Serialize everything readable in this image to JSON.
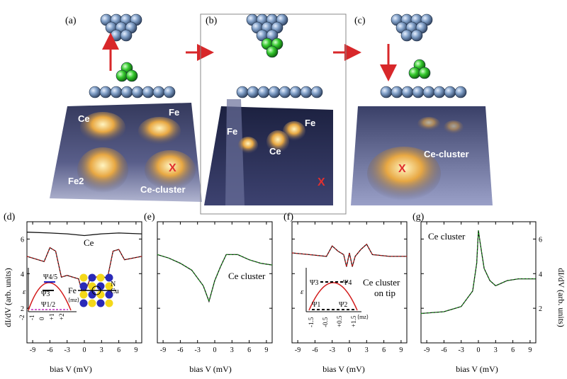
{
  "panels_top": {
    "a": {
      "label": "(a)",
      "atoms": [
        "Ce",
        "Fe",
        "Fe2",
        "Ce-cluster"
      ],
      "marker": "X"
    },
    "b": {
      "label": "(b)",
      "atoms": [
        "Fe",
        "Fe",
        "Ce"
      ],
      "marker": "X"
    },
    "c": {
      "label": "(c)",
      "atoms": [
        "Ce-cluster"
      ],
      "marker": "X"
    }
  },
  "panels_bottom": {
    "d": {
      "label": "(d)",
      "curve_label": "Ce",
      "inset": {
        "psi_top": "Ψ4/5",
        "psi_mid": "Ψ3",
        "psi_bot": "Ψ1/2",
        "xaxis": "⟨mz⟩",
        "yaxis": "ε",
        "ticks": [
          "-2",
          "-1",
          "0",
          "+1",
          "+2"
        ]
      },
      "lattice": {
        "center": "Fe",
        "n": "N",
        "cu": "Cu"
      }
    },
    "e": {
      "label": "(e)",
      "curve_label": "Ce cluster"
    },
    "f": {
      "label": "(f)",
      "curve_label_1": "Ce cluster",
      "curve_label_2": "on tip",
      "inset": {
        "psi_3": "Ψ3",
        "psi_4": "Ψ4",
        "psi_1": "Ψ1",
        "psi_2": "Ψ2",
        "yaxis": "ε",
        "xaxis": "⟨mz⟩",
        "ticks": [
          "-1.5",
          "-0.5",
          "+0.5",
          "+1.5"
        ]
      }
    },
    "g": {
      "label": "(g)",
      "curve_label": "Ce cluster"
    }
  },
  "axes": {
    "ylabel": "dI/dV (arb. units)",
    "xlabel": "bias V (mV)",
    "xticks": [
      "-9",
      "-6",
      "-3",
      "0",
      "3",
      "6",
      "9"
    ],
    "yticks": [
      "2",
      "4",
      "6"
    ]
  },
  "colors": {
    "fit": "#d21a1a",
    "green_fit": "#1a9a1a",
    "arrow": "#d8272a"
  },
  "chart_data": [
    {
      "type": "line",
      "panel": "d",
      "xlabel": "bias V (mV)",
      "ylabel": "dI/dV (arb. units)",
      "xlim": [
        -10,
        10
      ],
      "ylim": [
        0,
        7
      ],
      "series": [
        {
          "name": "Ce",
          "x": [
            -10,
            -6,
            -3,
            0,
            3,
            6,
            10
          ],
          "values": [
            6.4,
            6.35,
            6.3,
            6.2,
            6.3,
            6.35,
            6.3
          ]
        },
        {
          "name": "Fe",
          "x": [
            -10,
            -7,
            -6,
            -5,
            -4,
            -3,
            -2,
            -1,
            -0.3,
            0.3,
            1,
            2,
            3,
            4,
            5,
            6,
            7,
            10
          ],
          "values": [
            5.0,
            4.7,
            5.5,
            5.3,
            3.8,
            3.9,
            3.8,
            3.7,
            2.8,
            3.1,
            3.7,
            3.8,
            3.9,
            3.7,
            5.3,
            5.4,
            4.8,
            5.0
          ]
        }
      ]
    },
    {
      "type": "line",
      "panel": "e",
      "xlabel": "bias V (mV)",
      "xlim": [
        -10,
        10
      ],
      "ylim": [
        0,
        7
      ],
      "series": [
        {
          "name": "Ce cluster",
          "x": [
            -10,
            -8,
            -6,
            -4,
            -2,
            -1,
            0,
            1,
            2,
            4,
            6,
            8,
            10
          ],
          "values": [
            5.1,
            4.9,
            4.6,
            4.2,
            3.3,
            2.4,
            3.6,
            4.4,
            5.1,
            5.1,
            4.8,
            4.6,
            4.5
          ]
        }
      ]
    },
    {
      "type": "line",
      "panel": "f",
      "xlabel": "bias V (mV)",
      "xlim": [
        -10,
        10
      ],
      "ylim": [
        0,
        7
      ],
      "series": [
        {
          "name": "Ce cluster on tip",
          "x": [
            -10,
            -7,
            -4,
            -3,
            -2,
            -1,
            -0.5,
            0,
            0.5,
            1,
            2,
            3,
            4,
            7,
            10
          ],
          "values": [
            5.2,
            5.1,
            5.0,
            5.6,
            5.3,
            5.1,
            4.4,
            5.2,
            4.4,
            5.0,
            5.4,
            5.7,
            5.1,
            5.0,
            5.0
          ]
        }
      ]
    },
    {
      "type": "line",
      "panel": "g",
      "xlabel": "bias V (mV)",
      "xlim": [
        -10,
        10
      ],
      "ylim": [
        0,
        7
      ],
      "series": [
        {
          "name": "Ce cluster",
          "x": [
            -10,
            -6,
            -3,
            -1,
            -0.3,
            0,
            0.3,
            1,
            2,
            3,
            5,
            7,
            10
          ],
          "values": [
            1.7,
            1.8,
            2.1,
            3.0,
            4.6,
            6.5,
            5.8,
            4.3,
            3.6,
            3.3,
            3.6,
            3.7,
            3.7
          ]
        }
      ]
    }
  ]
}
